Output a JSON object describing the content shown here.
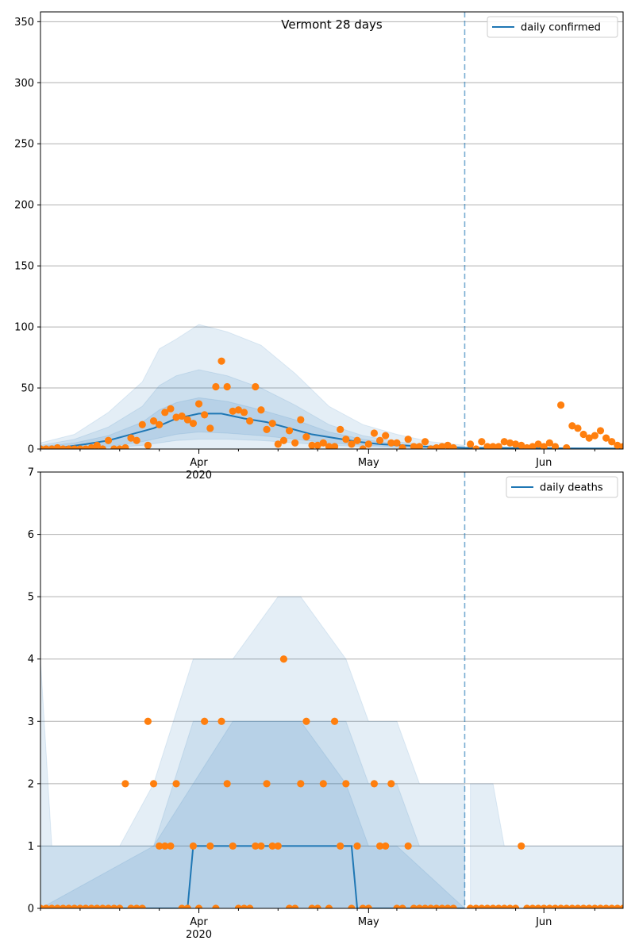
{
  "chart_data": [
    {
      "type": "line",
      "title": "Vermont 28 days",
      "xlabel": "",
      "ylabel": "",
      "ylim": [
        0,
        358
      ],
      "yticks": [
        0,
        50,
        100,
        150,
        200,
        250,
        300,
        350
      ],
      "x_start": "2020-03-04",
      "x_end": "2020-06-15",
      "forecast_date": "2020-05-18",
      "xtick_labels": [
        {
          "date": "2020-04-01",
          "label": "Apr",
          "sublabel": "2020"
        },
        {
          "date": "2020-05-01",
          "label": "May",
          "sublabel": ""
        },
        {
          "date": "2020-06-01",
          "label": "Jun",
          "sublabel": ""
        }
      ],
      "grid": true,
      "legend": {
        "position": "top-right",
        "entries": [
          "daily confirmed"
        ]
      },
      "colors": {
        "line": "#1f77b4",
        "band": "#1f77b4",
        "points": "#ff7f0e",
        "forecast_line": "#1f77b4"
      },
      "series": [
        {
          "name": "daily confirmed",
          "kind": "line",
          "x": [
            "2020-03-04",
            "2020-03-08",
            "2020-03-12",
            "2020-03-16",
            "2020-03-20",
            "2020-03-24",
            "2020-03-28",
            "2020-04-01",
            "2020-04-05",
            "2020-04-09",
            "2020-04-13",
            "2020-04-17",
            "2020-04-21",
            "2020-04-25",
            "2020-04-29",
            "2020-05-03",
            "2020-05-07",
            "2020-05-11",
            "2020-05-15",
            "2020-05-18",
            "2020-05-22",
            "2020-05-27",
            "2020-06-01",
            "2020-06-05",
            "2020-06-10",
            "2020-06-15"
          ],
          "y": [
            0.5,
            1.5,
            4,
            7,
            12,
            17,
            25,
            29,
            29,
            25,
            22,
            17,
            12,
            9,
            6,
            4,
            3,
            2,
            1.5,
            1,
            1,
            0.8,
            0.7,
            0.6,
            0.5,
            0.4
          ]
        },
        {
          "name": "",
          "kind": "points",
          "x": [
            "2020-03-04",
            "2020-03-05",
            "2020-03-06",
            "2020-03-07",
            "2020-03-08",
            "2020-03-09",
            "2020-03-10",
            "2020-03-11",
            "2020-03-12",
            "2020-03-13",
            "2020-03-14",
            "2020-03-15",
            "2020-03-16",
            "2020-03-17",
            "2020-03-18",
            "2020-03-19",
            "2020-03-20",
            "2020-03-21",
            "2020-03-22",
            "2020-03-23",
            "2020-03-24",
            "2020-03-25",
            "2020-03-26",
            "2020-03-27",
            "2020-03-28",
            "2020-03-29",
            "2020-03-30",
            "2020-03-31",
            "2020-04-01",
            "2020-04-02",
            "2020-04-03",
            "2020-04-04",
            "2020-04-05",
            "2020-04-06",
            "2020-04-07",
            "2020-04-08",
            "2020-04-09",
            "2020-04-10",
            "2020-04-11",
            "2020-04-12",
            "2020-04-13",
            "2020-04-14",
            "2020-04-15",
            "2020-04-16",
            "2020-04-17",
            "2020-04-18",
            "2020-04-19",
            "2020-04-20",
            "2020-04-21",
            "2020-04-22",
            "2020-04-23",
            "2020-04-24",
            "2020-04-25",
            "2020-04-26",
            "2020-04-27",
            "2020-04-28",
            "2020-04-29",
            "2020-04-30",
            "2020-05-01",
            "2020-05-02",
            "2020-05-03",
            "2020-05-04",
            "2020-05-05",
            "2020-05-06",
            "2020-05-07",
            "2020-05-08",
            "2020-05-09",
            "2020-05-10",
            "2020-05-11",
            "2020-05-12",
            "2020-05-13",
            "2020-05-14",
            "2020-05-15",
            "2020-05-16",
            "2020-05-19",
            "2020-05-20",
            "2020-05-21",
            "2020-05-22",
            "2020-05-23",
            "2020-05-24",
            "2020-05-25",
            "2020-05-26",
            "2020-05-27",
            "2020-05-28",
            "2020-05-29",
            "2020-05-30",
            "2020-05-31",
            "2020-06-01",
            "2020-06-02",
            "2020-06-03",
            "2020-06-04",
            "2020-06-05",
            "2020-06-06",
            "2020-06-07",
            "2020-06-08",
            "2020-06-09",
            "2020-06-10",
            "2020-06-11",
            "2020-06-12",
            "2020-06-13",
            "2020-06-14",
            "2020-06-15"
          ],
          "y": [
            0,
            0,
            0,
            1,
            0,
            0,
            0,
            0,
            0,
            1,
            3,
            0,
            7,
            0,
            0,
            1,
            9,
            7,
            20,
            3,
            23,
            20,
            30,
            33,
            26,
            27,
            24,
            21,
            37,
            28,
            17,
            51,
            72,
            51,
            31,
            32,
            30,
            23,
            51,
            32,
            16,
            21,
            4,
            7,
            15,
            5,
            24,
            10,
            3,
            3,
            5,
            2,
            2,
            16,
            8,
            4,
            7,
            0,
            4,
            13,
            7,
            11,
            5,
            5,
            1,
            8,
            2,
            2,
            6,
            0,
            1,
            2,
            3,
            1,
            4,
            0,
            6,
            2,
            2,
            2,
            6,
            5,
            4,
            3,
            1,
            2,
            4,
            2,
            5,
            2,
            36,
            1,
            19,
            17,
            12,
            9,
            11,
            15,
            9,
            6,
            3,
            2
          ]
        }
      ],
      "bands": [
        {
          "x": [
            "2020-03-04",
            "2020-03-10",
            "2020-03-16",
            "2020-03-22",
            "2020-03-25",
            "2020-03-28",
            "2020-04-01",
            "2020-04-06",
            "2020-04-12",
            "2020-04-18",
            "2020-04-24",
            "2020-04-30",
            "2020-05-06",
            "2020-05-12",
            "2020-05-18"
          ],
          "lower": [
            0,
            0,
            0,
            0,
            0,
            0,
            0,
            0,
            0,
            0,
            0,
            0,
            0,
            0,
            0
          ],
          "upper": [
            5,
            12,
            30,
            55,
            82,
            90,
            102,
            96,
            85,
            62,
            35,
            20,
            12,
            6,
            3
          ]
        },
        {
          "x": [
            "2020-03-04",
            "2020-03-10",
            "2020-03-16",
            "2020-03-22",
            "2020-03-25",
            "2020-03-28",
            "2020-04-01",
            "2020-04-06",
            "2020-04-12",
            "2020-04-18",
            "2020-04-24",
            "2020-04-30",
            "2020-05-06",
            "2020-05-12",
            "2020-05-18"
          ],
          "lower": [
            0,
            0,
            1,
            3,
            5,
            7,
            8,
            8,
            7,
            5,
            3,
            2,
            1,
            0,
            0
          ],
          "upper": [
            3,
            8,
            18,
            35,
            52,
            60,
            65,
            60,
            50,
            36,
            20,
            11,
            6,
            3,
            2
          ]
        },
        {
          "x": [
            "2020-03-04",
            "2020-03-10",
            "2020-03-16",
            "2020-03-22",
            "2020-03-25",
            "2020-03-28",
            "2020-04-01",
            "2020-04-06",
            "2020-04-12",
            "2020-04-18",
            "2020-04-24",
            "2020-04-30",
            "2020-05-06",
            "2020-05-12",
            "2020-05-18"
          ],
          "lower": [
            0,
            1,
            2,
            6,
            9,
            12,
            14,
            13,
            11,
            8,
            5,
            3,
            2,
            1,
            0
          ],
          "upper": [
            2,
            5,
            11,
            22,
            32,
            38,
            42,
            39,
            32,
            24,
            14,
            8,
            4,
            2,
            1
          ]
        }
      ]
    },
    {
      "type": "line",
      "title": "",
      "xlabel": "",
      "ylabel": "",
      "ylim": [
        0,
        7
      ],
      "yticks": [
        0,
        1,
        2,
        3,
        4,
        5,
        6,
        7
      ],
      "x_start": "2020-03-04",
      "x_end": "2020-06-15",
      "forecast_date": "2020-05-18",
      "xtick_labels": [
        {
          "date": "2020-04-01",
          "label": "Apr",
          "sublabel": "2020"
        },
        {
          "date": "2020-05-01",
          "label": "May",
          "sublabel": ""
        },
        {
          "date": "2020-06-01",
          "label": "Jun",
          "sublabel": ""
        }
      ],
      "grid": true,
      "legend": {
        "position": "top-right",
        "entries": [
          "daily deaths"
        ]
      },
      "colors": {
        "line": "#1f77b4",
        "band": "#1f77b4",
        "points": "#ff7f0e",
        "forecast_line": "#1f77b4"
      },
      "series": [
        {
          "name": "daily deaths",
          "kind": "line",
          "x": [
            "2020-03-04",
            "2020-03-30",
            "2020-03-31",
            "2020-04-28",
            "2020-04-29",
            "2020-05-18"
          ],
          "y": [
            0,
            0,
            1,
            1,
            0,
            0
          ]
        },
        {
          "name": "",
          "kind": "points",
          "x": [
            "2020-03-04",
            "2020-03-05",
            "2020-03-06",
            "2020-03-07",
            "2020-03-08",
            "2020-03-09",
            "2020-03-10",
            "2020-03-11",
            "2020-03-12",
            "2020-03-13",
            "2020-03-14",
            "2020-03-15",
            "2020-03-16",
            "2020-03-17",
            "2020-03-18",
            "2020-03-19",
            "2020-03-20",
            "2020-03-21",
            "2020-03-22",
            "2020-03-23",
            "2020-03-24",
            "2020-03-25",
            "2020-03-26",
            "2020-03-27",
            "2020-03-28",
            "2020-03-29",
            "2020-03-30",
            "2020-03-31",
            "2020-04-01",
            "2020-04-02",
            "2020-04-03",
            "2020-04-04",
            "2020-04-05",
            "2020-04-06",
            "2020-04-07",
            "2020-04-08",
            "2020-04-09",
            "2020-04-10",
            "2020-04-11",
            "2020-04-12",
            "2020-04-13",
            "2020-04-14",
            "2020-04-15",
            "2020-04-16",
            "2020-04-17",
            "2020-04-18",
            "2020-04-19",
            "2020-04-20",
            "2020-04-21",
            "2020-04-22",
            "2020-04-23",
            "2020-04-24",
            "2020-04-25",
            "2020-04-26",
            "2020-04-27",
            "2020-04-28",
            "2020-04-29",
            "2020-04-30",
            "2020-05-01",
            "2020-05-02",
            "2020-05-03",
            "2020-05-04",
            "2020-05-05",
            "2020-05-06",
            "2020-05-07",
            "2020-05-08",
            "2020-05-09",
            "2020-05-10",
            "2020-05-11",
            "2020-05-12",
            "2020-05-13",
            "2020-05-14",
            "2020-05-15",
            "2020-05-16",
            "2020-05-19",
            "2020-05-20",
            "2020-05-21",
            "2020-05-22",
            "2020-05-23",
            "2020-05-24",
            "2020-05-25",
            "2020-05-26",
            "2020-05-27",
            "2020-05-28",
            "2020-05-29",
            "2020-05-30",
            "2020-05-31",
            "2020-06-01",
            "2020-06-02",
            "2020-06-03",
            "2020-06-04",
            "2020-06-05",
            "2020-06-06",
            "2020-06-07",
            "2020-06-08",
            "2020-06-09",
            "2020-06-10",
            "2020-06-11",
            "2020-06-12",
            "2020-06-13",
            "2020-06-14",
            "2020-06-15"
          ],
          "y": [
            0,
            0,
            0,
            0,
            0,
            0,
            0,
            0,
            0,
            0,
            0,
            0,
            0,
            0,
            0,
            2,
            0,
            0,
            0,
            3,
            2,
            1,
            1,
            1,
            2,
            0,
            0,
            1,
            0,
            3,
            1,
            0,
            3,
            2,
            1,
            0,
            0,
            0,
            1,
            1,
            2,
            1,
            1,
            4,
            0,
            0,
            2,
            3,
            0,
            0,
            2,
            0,
            3,
            1,
            2,
            0,
            1,
            0,
            0,
            2,
            1,
            1,
            2,
            0,
            0,
            1,
            0,
            0,
            0,
            0,
            0,
            0,
            0,
            0,
            0,
            0,
            0,
            0,
            0,
            0,
            0,
            0,
            0,
            1,
            0,
            0,
            0,
            0,
            0,
            0,
            0,
            0,
            0,
            0,
            0,
            0,
            0,
            0,
            0,
            0,
            0,
            0
          ]
        }
      ],
      "bands": [
        {
          "x": [
            "2020-03-04",
            "2020-03-06",
            "2020-03-18",
            "2020-03-24",
            "2020-03-31",
            "2020-04-07",
            "2020-04-15",
            "2020-04-19",
            "2020-04-27",
            "2020-05-01",
            "2020-05-06",
            "2020-05-10",
            "2020-05-18"
          ],
          "lower": [
            0,
            0,
            0,
            0,
            0,
            0,
            0,
            0,
            0,
            0,
            0,
            0,
            0
          ],
          "upper": [
            4,
            1,
            1,
            2,
            4,
            4,
            5,
            5,
            4,
            3,
            3,
            2,
            2
          ]
        },
        {
          "x": [
            "2020-03-04",
            "2020-03-18",
            "2020-03-24",
            "2020-03-31",
            "2020-04-07",
            "2020-04-19",
            "2020-04-27",
            "2020-05-01",
            "2020-05-06",
            "2020-05-10",
            "2020-05-18"
          ],
          "lower": [
            0,
            0,
            0,
            0,
            0,
            0,
            0,
            0,
            0,
            0,
            0
          ],
          "upper": [
            1,
            1,
            1,
            3,
            3,
            3,
            3,
            2,
            2,
            1,
            1
          ]
        },
        {
          "x": [
            "2020-03-04",
            "2020-03-24",
            "2020-03-31",
            "2020-04-07",
            "2020-04-19",
            "2020-04-27",
            "2020-05-01",
            "2020-05-06",
            "2020-05-18"
          ],
          "lower": [
            0,
            0,
            0,
            0,
            0,
            0,
            0,
            0,
            0
          ],
          "upper": [
            0,
            1,
            2,
            3,
            3,
            2,
            1,
            1,
            0
          ]
        }
      ],
      "post_bands": {
        "x": [
          "2020-05-19",
          "2020-05-23",
          "2020-05-25",
          "2020-05-29",
          "2020-06-05",
          "2020-06-10",
          "2020-06-15"
        ],
        "upper": [
          2,
          2,
          1,
          1,
          1,
          1,
          1
        ]
      }
    }
  ]
}
